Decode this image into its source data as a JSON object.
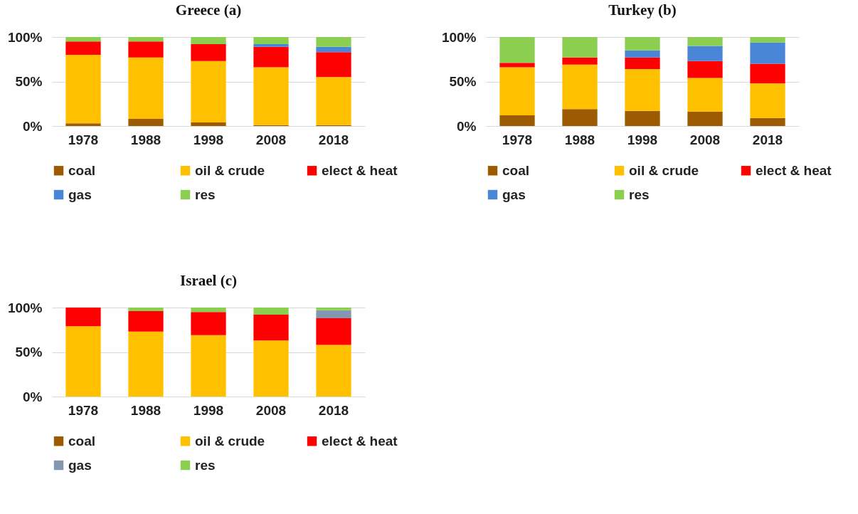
{
  "chart_data": [
    {
      "type": "bar",
      "title": "Greece (a)",
      "stacked": true,
      "categories": [
        "1978",
        "1988",
        "1998",
        "2008",
        "2018"
      ],
      "ylim": [
        0,
        100
      ],
      "yticks": [
        {
          "value": 0,
          "label": "0%"
        },
        {
          "value": 50,
          "label": "50%"
        },
        {
          "value": 100,
          "label": "100%"
        }
      ],
      "grid": "y",
      "legend": "bottom",
      "series": [
        {
          "name": "coal",
          "color": "#9c5b00",
          "values": [
            3,
            8,
            4,
            1,
            1
          ]
        },
        {
          "name": "oil & crude",
          "color": "#ffc000",
          "values": [
            77,
            69,
            69,
            65,
            54
          ]
        },
        {
          "name": "elect & heat",
          "color": "#ff0000",
          "values": [
            15,
            18,
            19,
            23,
            28
          ]
        },
        {
          "name": "gas",
          "color": "#4a86d8",
          "values": [
            0,
            0,
            0,
            3,
            6
          ]
        },
        {
          "name": "res",
          "color": "#8ccf50",
          "values": [
            5,
            5,
            8,
            8,
            11
          ]
        }
      ]
    },
    {
      "type": "bar",
      "title": "Turkey (b)",
      "stacked": true,
      "categories": [
        "1978",
        "1988",
        "1998",
        "2008",
        "2018"
      ],
      "ylim": [
        0,
        100
      ],
      "yticks": [
        {
          "value": 0,
          "label": "0%"
        },
        {
          "value": 50,
          "label": "50%"
        },
        {
          "value": 100,
          "label": "100%"
        }
      ],
      "grid": "y",
      "legend": "bottom",
      "series": [
        {
          "name": "coal",
          "color": "#9c5b00",
          "values": [
            12,
            19,
            17,
            16,
            9
          ]
        },
        {
          "name": "oil & crude",
          "color": "#ffc000",
          "values": [
            54,
            50,
            47,
            38,
            39
          ]
        },
        {
          "name": "elect & heat",
          "color": "#ff0000",
          "values": [
            5,
            8,
            13,
            19,
            22
          ]
        },
        {
          "name": "gas",
          "color": "#4a86d8",
          "values": [
            0,
            0,
            8,
            17,
            24
          ]
        },
        {
          "name": "res",
          "color": "#8ccf50",
          "values": [
            29,
            23,
            15,
            10,
            6
          ]
        }
      ]
    },
    {
      "type": "bar",
      "title": "Israel (c)",
      "stacked": true,
      "categories": [
        "1978",
        "1988",
        "1998",
        "2008",
        "2018"
      ],
      "ylim": [
        0,
        100
      ],
      "yticks": [
        {
          "value": 0,
          "label": "0%"
        },
        {
          "value": 50,
          "label": "50%"
        },
        {
          "value": 100,
          "label": "100%"
        }
      ],
      "grid": "y",
      "legend": "bottom",
      "series": [
        {
          "name": "coal",
          "color": "#9c5b00",
          "values": [
            0,
            0,
            0,
            0,
            0
          ]
        },
        {
          "name": "oil & crude",
          "color": "#ffc000",
          "values": [
            79,
            73,
            69,
            63,
            58
          ]
        },
        {
          "name": "elect & heat",
          "color": "#ff0000",
          "values": [
            21,
            23,
            26,
            29,
            30
          ]
        },
        {
          "name": "gas",
          "color": "#8497b0",
          "values": [
            0,
            0,
            0,
            0,
            9
          ]
        },
        {
          "name": "res",
          "color": "#8ccf50",
          "values": [
            0,
            4,
            5,
            8,
            3
          ]
        }
      ]
    }
  ]
}
